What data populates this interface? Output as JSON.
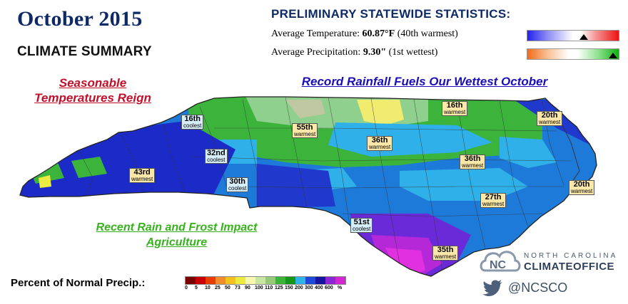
{
  "header": {
    "title": "October 2015",
    "subtitle": "CLIMATE SUMMARY"
  },
  "stats": {
    "heading": "PRELIMINARY STATEWIDE STATISTICS:",
    "temp_label": "Average Temperature:",
    "temp_value": "60.87°F",
    "temp_rank": "(40th warmest)",
    "prcp_label": "Average Precipitation:",
    "prcp_value": "9.30\"",
    "prcp_rank": "(1st wettest)",
    "temp_bar_colors": [
      "#2222ee",
      "#ffffff",
      "#ee1111"
    ],
    "prcp_bar_colors": [
      "#f26b18",
      "#ffffff",
      "#10b010"
    ]
  },
  "headlines": {
    "temperature": "Seasonable Temperatures Reign",
    "rainfall": "Record Rainfall Fuels Our Wettest October",
    "agriculture": "Recent Rain and Frost Impact Agriculture"
  },
  "map": {
    "region": "North Carolina",
    "rank_labels": [
      {
        "rank": "16th",
        "type": "coolest"
      },
      {
        "rank": "32nd",
        "type": "coolest"
      },
      {
        "rank": "43rd",
        "type": "warmest"
      },
      {
        "rank": "30th",
        "type": "coolest"
      },
      {
        "rank": "55th",
        "type": "warmest"
      },
      {
        "rank": "36th",
        "type": "warmest"
      },
      {
        "rank": "16th",
        "type": "warmest"
      },
      {
        "rank": "20th",
        "type": "warmest"
      },
      {
        "rank": "36th",
        "type": "warmest"
      },
      {
        "rank": "20th",
        "type": "warmest"
      },
      {
        "rank": "27th",
        "type": "warmest"
      },
      {
        "rank": "51st",
        "type": "coolest"
      },
      {
        "rank": "35th",
        "type": "warmest"
      }
    ]
  },
  "legend": {
    "title": "Percent of Normal Precip.:",
    "unit": "%",
    "values": [
      "0",
      "5",
      "10",
      "25",
      "50",
      "73",
      "90",
      "100",
      "110",
      "125",
      "150",
      "200",
      "300",
      "400",
      "600"
    ],
    "colors": [
      "#7a0000",
      "#c80000",
      "#e83c00",
      "#f08c2c",
      "#f4c020",
      "#ecec40",
      "#f8f8b0",
      "#c8e6a0",
      "#98c878",
      "#3cb43c",
      "#169616",
      "#30b4e6",
      "#2048d8",
      "#1414a0",
      "#8c28d2",
      "#d228d2"
    ]
  },
  "logo": {
    "line1": "NORTH CAROLINA",
    "line2": "CLIMATEOFFICE",
    "handle": "@NCSCO"
  }
}
